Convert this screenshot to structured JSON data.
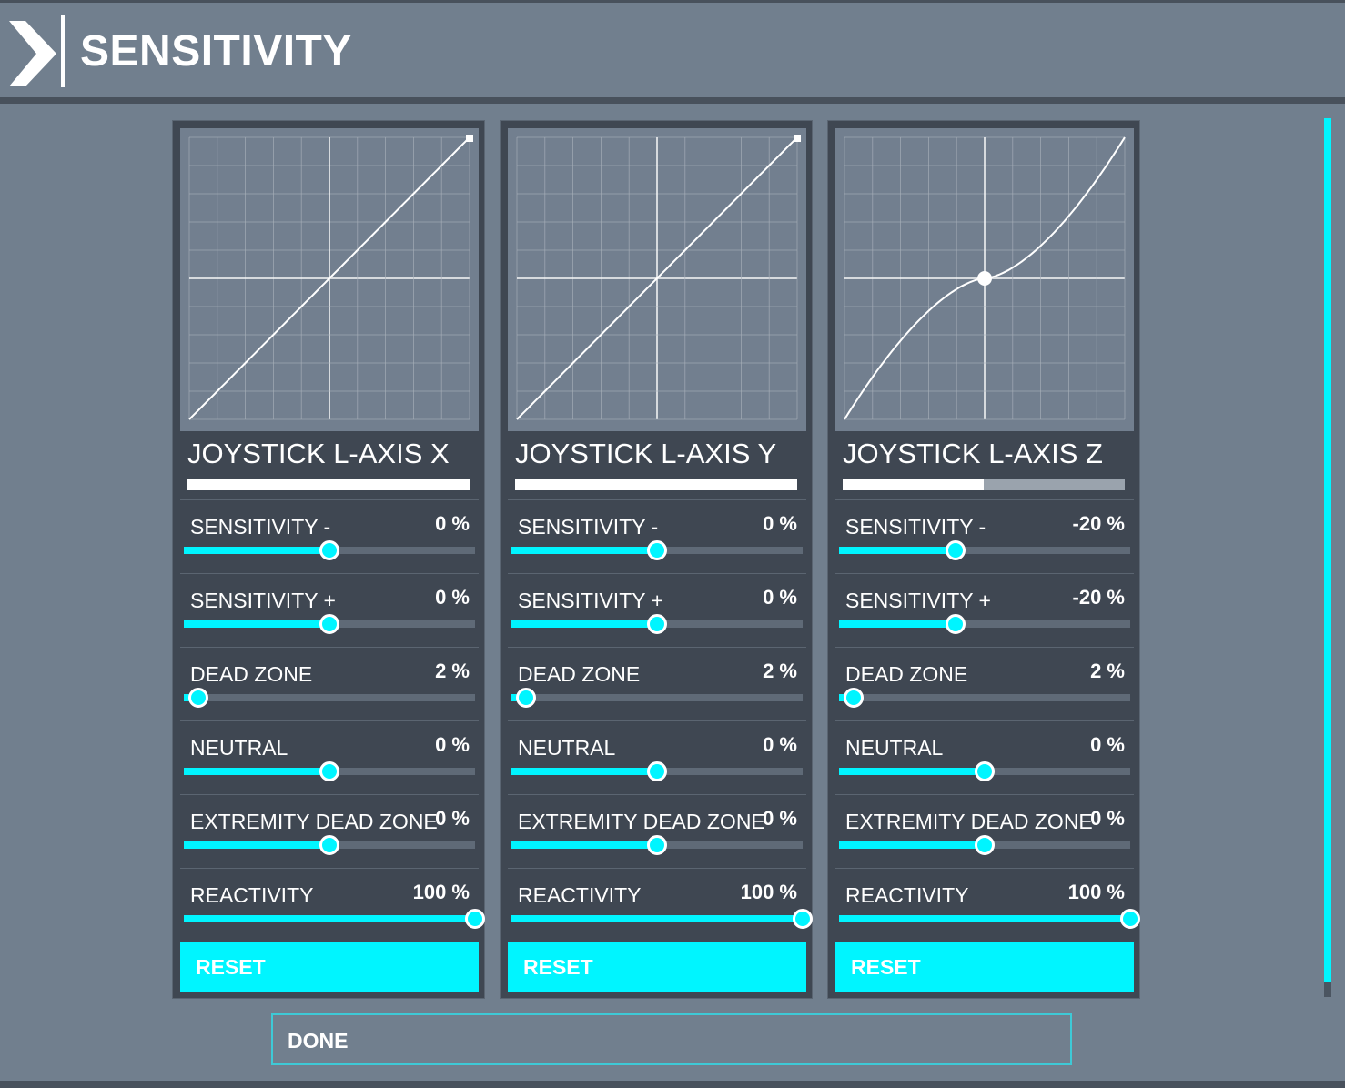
{
  "header": {
    "title": "SENSITIVITY",
    "icon": "chevron-right-icon"
  },
  "colors": {
    "accent": "#00f5ff",
    "panel": "#3f4752",
    "background": "#717f8e",
    "graph": "#727f8f"
  },
  "panels": [
    {
      "axis": "JOYSTICK L-AXIS X",
      "input_level": 1.0,
      "curve_exponent": 1.0,
      "settings": [
        {
          "label": "SENSITIVITY -",
          "value": "0 %",
          "position": 0.5
        },
        {
          "label": "SENSITIVITY +",
          "value": "0 %",
          "position": 0.5
        },
        {
          "label": "DEAD ZONE",
          "value": "2 %",
          "position": 0.05
        },
        {
          "label": "NEUTRAL",
          "value": "0 %",
          "position": 0.5
        },
        {
          "label": "EXTREMITY DEAD ZONE",
          "value": "0 %",
          "position": 0.5
        },
        {
          "label": "REACTIVITY",
          "value": "100 %",
          "position": 1.0
        }
      ],
      "reset_label": "RESET"
    },
    {
      "axis": "JOYSTICK L-AXIS Y",
      "input_level": 1.0,
      "curve_exponent": 1.0,
      "settings": [
        {
          "label": "SENSITIVITY -",
          "value": "0 %",
          "position": 0.5
        },
        {
          "label": "SENSITIVITY +",
          "value": "0 %",
          "position": 0.5
        },
        {
          "label": "DEAD ZONE",
          "value": "2 %",
          "position": 0.05
        },
        {
          "label": "NEUTRAL",
          "value": "0 %",
          "position": 0.5
        },
        {
          "label": "EXTREMITY DEAD ZONE",
          "value": "0 %",
          "position": 0.5
        },
        {
          "label": "REACTIVITY",
          "value": "100 %",
          "position": 1.0
        }
      ],
      "reset_label": "RESET"
    },
    {
      "axis": "JOYSTICK L-AXIS Z",
      "input_level": 0.5,
      "curve_exponent": 1.6,
      "settings": [
        {
          "label": "SENSITIVITY -",
          "value": "-20 %",
          "position": 0.4
        },
        {
          "label": "SENSITIVITY +",
          "value": "-20 %",
          "position": 0.4
        },
        {
          "label": "DEAD ZONE",
          "value": "2 %",
          "position": 0.05
        },
        {
          "label": "NEUTRAL",
          "value": "0 %",
          "position": 0.5
        },
        {
          "label": "EXTREMITY DEAD ZONE",
          "value": "0 %",
          "position": 0.5
        },
        {
          "label": "REACTIVITY",
          "value": "100 %",
          "position": 1.0
        }
      ],
      "reset_label": "RESET"
    }
  ],
  "done_label": "DONE"
}
